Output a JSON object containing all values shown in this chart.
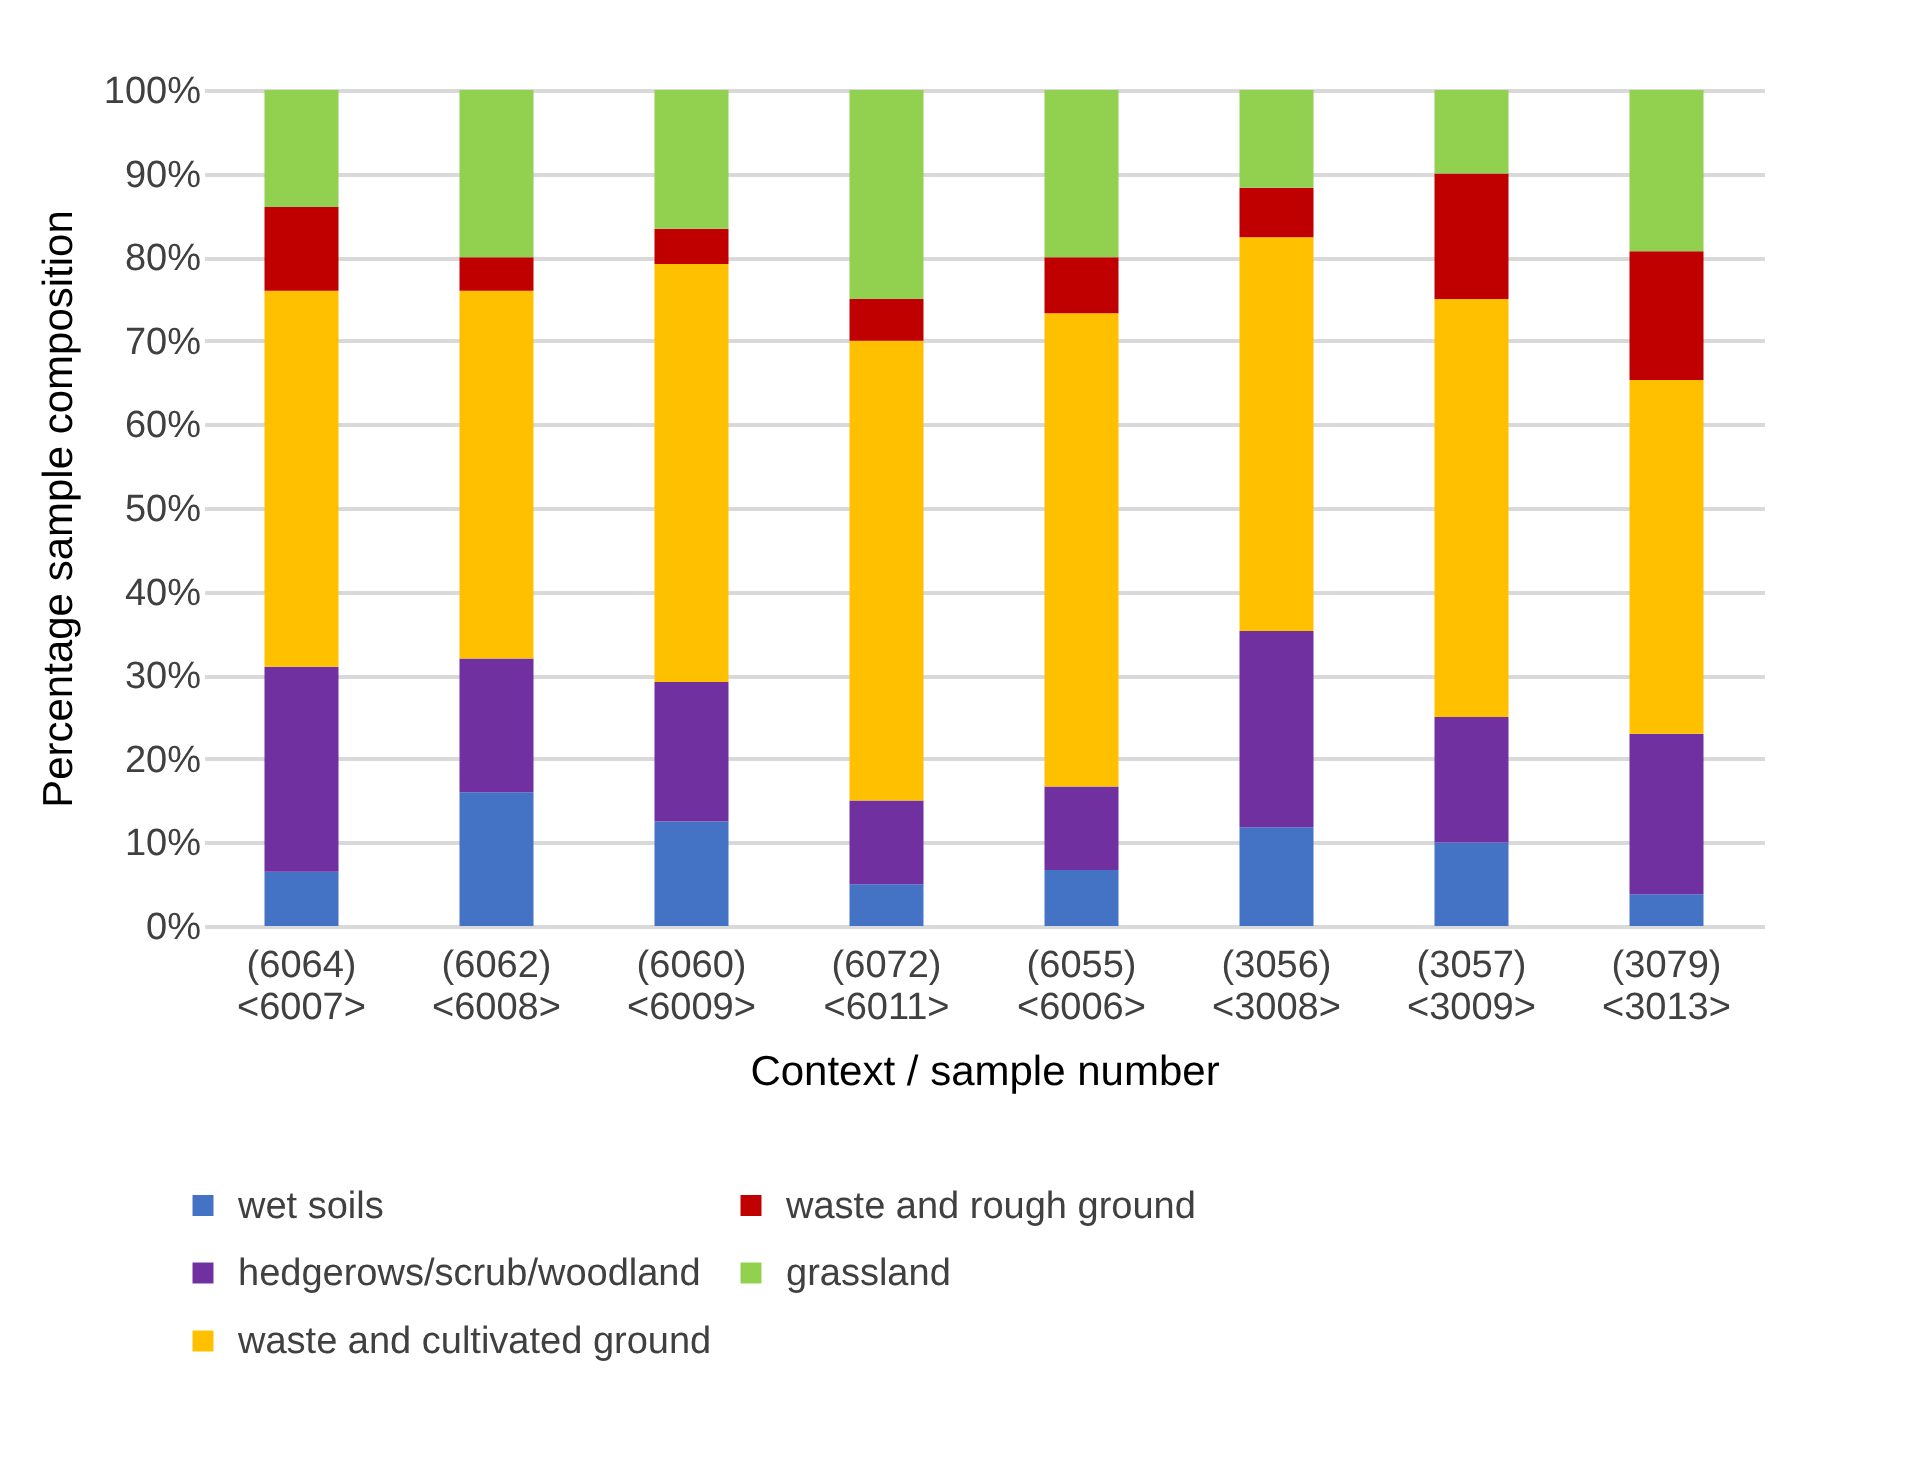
{
  "chart_data": {
    "type": "bar",
    "stacked": true,
    "xlabel": "Context / sample number",
    "ylabel": "Percentage sample composition",
    "categories": [
      "(6064) <6007>",
      "(6062) <6008>",
      "(6060) <6009>",
      "(6072) <6011>",
      "(6055) <6006>",
      "(3056) <3008>",
      "(3057) <3009>",
      "(3079) <3013>"
    ],
    "series": [
      {
        "name": "wet soils",
        "color": "#4472c4",
        "values": [
          6.5,
          16,
          12.5,
          5,
          6.7,
          11.8,
          10,
          3.8
        ]
      },
      {
        "name": "hedgerows/scrub/woodland",
        "color": "#7030a0",
        "values": [
          24.5,
          16,
          16.7,
          10,
          10,
          23.5,
          15,
          19.2
        ]
      },
      {
        "name": "waste and cultivated ground",
        "color": "#ffc000",
        "values": [
          45,
          44,
          50,
          55,
          56.6,
          47.1,
          50,
          42.3
        ]
      },
      {
        "name": "waste and rough ground",
        "color": "#c00000",
        "values": [
          10,
          4,
          4.2,
          5,
          6.7,
          5.9,
          15,
          15.4
        ]
      },
      {
        "name": "grassland",
        "color": "#92d050",
        "values": [
          14,
          20,
          16.6,
          25,
          20,
          11.7,
          10,
          19.3
        ]
      }
    ],
    "ylim": [
      0,
      100
    ],
    "yticks": [
      {
        "value": 0,
        "label": "0%"
      },
      {
        "value": 10,
        "label": "10%"
      },
      {
        "value": 20,
        "label": "20%"
      },
      {
        "value": 30,
        "label": "30%"
      },
      {
        "value": 40,
        "label": "40%"
      },
      {
        "value": 50,
        "label": "50%"
      },
      {
        "value": 60,
        "label": "60%"
      },
      {
        "value": 70,
        "label": "70%"
      },
      {
        "value": 80,
        "label": "80%"
      },
      {
        "value": 90,
        "label": "90%"
      },
      {
        "value": 100,
        "label": "100%"
      }
    ],
    "grid": "y",
    "legend": "bottom"
  }
}
